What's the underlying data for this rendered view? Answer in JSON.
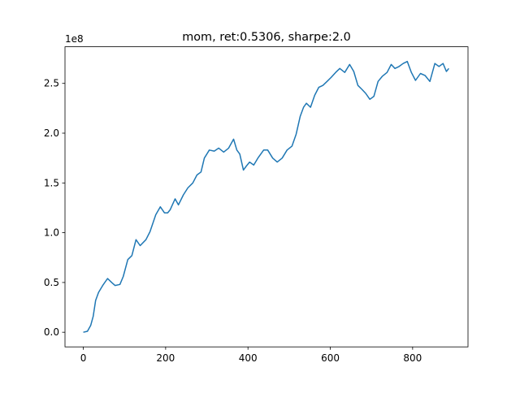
{
  "chart_data": {
    "type": "line",
    "title": "mom, ret:0.5306, sharpe:2.0",
    "y_offset_label": "1e8",
    "x": [
      0,
      10,
      18,
      24,
      30,
      37,
      47,
      59,
      69,
      77,
      89,
      97,
      108,
      118,
      128,
      138,
      152,
      162,
      176,
      187,
      197,
      205,
      211,
      223,
      231,
      243,
      254,
      266,
      276,
      286,
      294,
      306,
      318,
      329,
      341,
      353,
      365,
      373,
      380,
      389,
      396,
      404,
      414,
      424,
      438,
      448,
      460,
      471,
      483,
      495,
      507,
      517,
      527,
      535,
      542,
      552,
      562,
      572,
      582,
      592,
      602,
      613,
      623,
      635,
      647,
      657,
      667,
      677,
      686,
      696,
      706,
      716,
      726,
      738,
      748,
      757,
      767,
      777,
      787,
      797,
      807,
      819,
      830,
      842,
      854,
      864,
      874,
      882,
      888
    ],
    "series": [
      {
        "name": "mom",
        "color": "#1f77b4",
        "values": [
          0,
          0.01,
          0.07,
          0.16,
          0.32,
          0.4,
          0.47,
          0.54,
          0.5,
          0.47,
          0.48,
          0.56,
          0.73,
          0.77,
          0.93,
          0.87,
          0.93,
          1.01,
          1.18,
          1.26,
          1.2,
          1.2,
          1.23,
          1.34,
          1.28,
          1.38,
          1.45,
          1.5,
          1.58,
          1.61,
          1.75,
          1.83,
          1.82,
          1.85,
          1.81,
          1.85,
          1.94,
          1.83,
          1.79,
          1.63,
          1.67,
          1.71,
          1.68,
          1.75,
          1.83,
          1.83,
          1.75,
          1.71,
          1.75,
          1.83,
          1.87,
          1.99,
          2.17,
          2.26,
          2.3,
          2.26,
          2.38,
          2.46,
          2.48,
          2.52,
          2.56,
          2.61,
          2.65,
          2.61,
          2.69,
          2.62,
          2.48,
          2.44,
          2.4,
          2.34,
          2.37,
          2.52,
          2.57,
          2.61,
          2.69,
          2.65,
          2.67,
          2.7,
          2.72,
          2.61,
          2.53,
          2.6,
          2.58,
          2.52,
          2.7,
          2.67,
          2.7,
          2.62,
          2.65
        ]
      }
    ],
    "xlim": [
      -44.5,
      934.5
    ],
    "xticks": [
      0,
      200,
      400,
      600,
      800
    ],
    "ylim": [
      -0.147,
      2.868
    ],
    "yticks": [
      {
        "value": 0,
        "label": "0.0"
      },
      0.5,
      {
        "value": 1,
        "label": "1.0"
      },
      1.5,
      {
        "value": 2,
        "label": "2.0"
      },
      2.5
    ]
  }
}
